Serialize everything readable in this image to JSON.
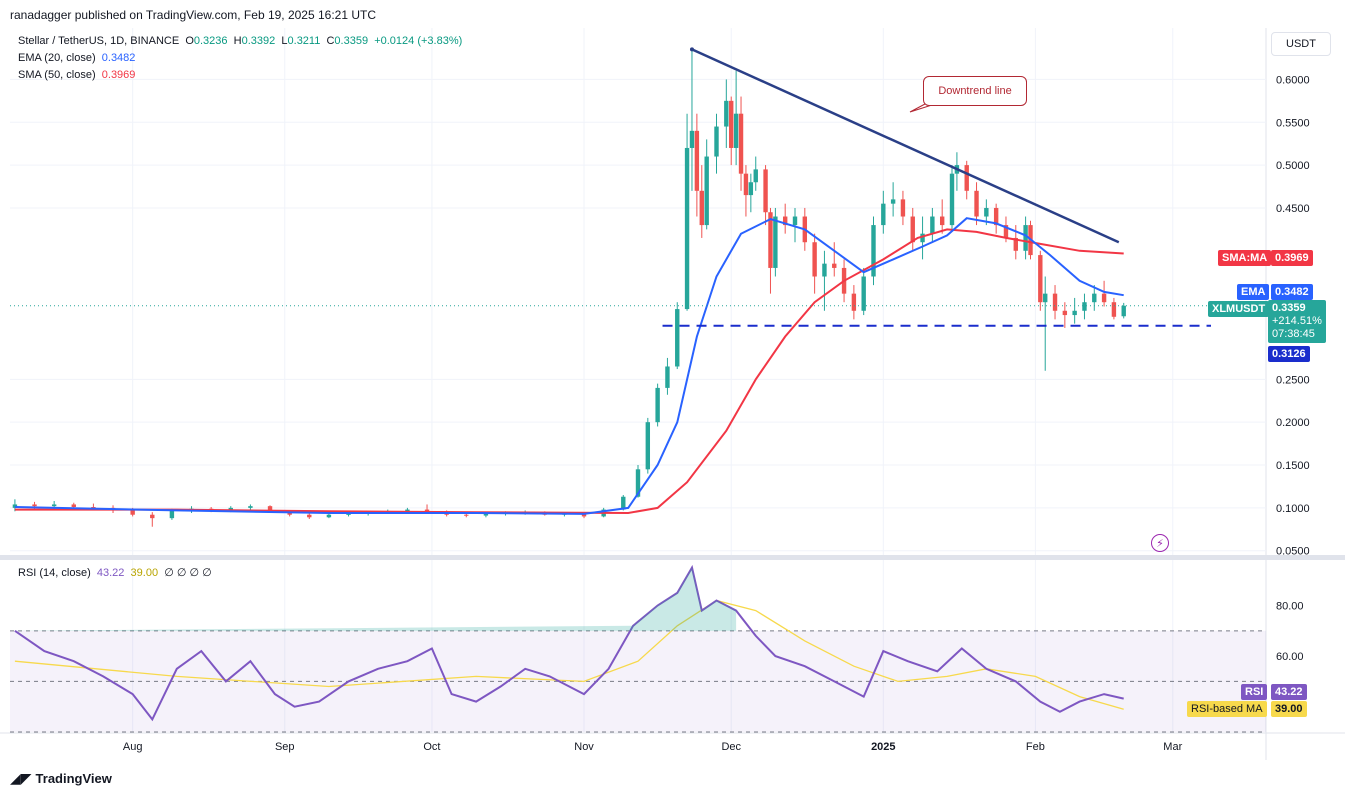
{
  "header": {
    "published_line": "ranadagger published on TradingView.com, Feb 19, 2025 16:21 UTC"
  },
  "legend": {
    "symbol": "Stellar / TetherUS, 1D, BINANCE",
    "open_label": "O",
    "open": "0.3236",
    "high_label": "H",
    "high": "0.3392",
    "low_label": "L",
    "low": "0.3211",
    "close_label": "C",
    "close": "0.3359",
    "change": "+0.0124 (+3.83%)",
    "ema_label": "EMA (20, close)",
    "ema_value": "0.3482",
    "sma_label": "SMA (50, close)",
    "sma_value": "0.3969",
    "rsi_label": "RSI (14, close)",
    "rsi_value": "43.22",
    "rsi_ma_value": "39.00",
    "rsi_extra": "∅ ∅ ∅ ∅"
  },
  "currency": "USDT",
  "annotation": "Downtrend line",
  "price_tags": {
    "sma_name": "SMA:MA",
    "sma_value": "0.3969",
    "ema_name": "EMA",
    "ema_value": "0.3482",
    "symbol_name": "XLMUSDT",
    "last_price": "0.3359",
    "change_pct": "+214.51%",
    "countdown": "07:38:45",
    "support_value": "0.3126",
    "rsi_name": "RSI",
    "rsi_value": "43.22",
    "rsi_ma_name": "RSI-based MA",
    "rsi_ma_value": "39.00"
  },
  "branding": "TradingView",
  "colors": {
    "up": "#26a69a",
    "down": "#ef5350",
    "ema": "#2962ff",
    "sma": "#f23645",
    "trendline": "#2a3f87",
    "support": "#1a2dcc",
    "rsi": "#7e57c2",
    "rsi_ma": "#f7d94c"
  },
  "chart_data": [
    {
      "type": "candlestick",
      "title": "Stellar / TetherUS, 1D, BINANCE",
      "y_ticks": [
        "0.6000",
        "0.5500",
        "0.5000",
        "0.4500",
        "0.2500",
        "0.2000",
        "0.1500",
        "0.1000",
        "0.0500"
      ],
      "x_ticks": [
        "Aug",
        "Sep",
        "Oct",
        "Nov",
        "Dec",
        "2025",
        "Feb",
        "Mar"
      ],
      "ylim": [
        0.045,
        0.66
      ],
      "x_range": [
        "2024-07-07",
        "2025-03-20"
      ],
      "support_level": 0.3126,
      "trendline": [
        [
          "2024-11-23",
          0.635
        ],
        [
          "2025-02-18",
          0.41
        ]
      ],
      "ohlc": [
        [
          "2024-07-08",
          0.1,
          0.11,
          0.096,
          0.104
        ],
        [
          "2024-07-12",
          0.104,
          0.107,
          0.098,
          0.102
        ],
        [
          "2024-07-16",
          0.102,
          0.108,
          0.097,
          0.104
        ],
        [
          "2024-07-20",
          0.104,
          0.106,
          0.099,
          0.101
        ],
        [
          "2024-07-24",
          0.101,
          0.105,
          0.097,
          0.1
        ],
        [
          "2024-07-28",
          0.1,
          0.103,
          0.094,
          0.097
        ],
        [
          "2024-08-01",
          0.097,
          0.1,
          0.09,
          0.092
        ],
        [
          "2024-08-05",
          0.092,
          0.095,
          0.078,
          0.088
        ],
        [
          "2024-08-09",
          0.088,
          0.099,
          0.086,
          0.097
        ],
        [
          "2024-08-13",
          0.097,
          0.102,
          0.094,
          0.099
        ],
        [
          "2024-08-17",
          0.099,
          0.101,
          0.095,
          0.097
        ],
        [
          "2024-08-21",
          0.097,
          0.102,
          0.095,
          0.1
        ],
        [
          "2024-08-25",
          0.1,
          0.104,
          0.097,
          0.102
        ],
        [
          "2024-08-29",
          0.102,
          0.103,
          0.094,
          0.095
        ],
        [
          "2024-09-02",
          0.095,
          0.097,
          0.09,
          0.092
        ],
        [
          "2024-09-06",
          0.092,
          0.094,
          0.087,
          0.089
        ],
        [
          "2024-09-10",
          0.089,
          0.093,
          0.088,
          0.092
        ],
        [
          "2024-09-14",
          0.092,
          0.095,
          0.09,
          0.093
        ],
        [
          "2024-09-18",
          0.093,
          0.096,
          0.091,
          0.095
        ],
        [
          "2024-09-22",
          0.095,
          0.098,
          0.093,
          0.096
        ],
        [
          "2024-09-26",
          0.096,
          0.1,
          0.094,
          0.098
        ],
        [
          "2024-09-30",
          0.098,
          0.104,
          0.093,
          0.095
        ],
        [
          "2024-10-04",
          0.095,
          0.097,
          0.09,
          0.092
        ],
        [
          "2024-10-08",
          0.092,
          0.094,
          0.089,
          0.091
        ],
        [
          "2024-10-12",
          0.091,
          0.094,
          0.089,
          0.093
        ],
        [
          "2024-10-16",
          0.093,
          0.096,
          0.091,
          0.094
        ],
        [
          "2024-10-20",
          0.094,
          0.097,
          0.092,
          0.095
        ],
        [
          "2024-10-24",
          0.095,
          0.096,
          0.091,
          0.092
        ],
        [
          "2024-10-28",
          0.092,
          0.095,
          0.09,
          0.094
        ],
        [
          "2024-11-01",
          0.094,
          0.095,
          0.088,
          0.09
        ],
        [
          "2024-11-05",
          0.09,
          0.1,
          0.089,
          0.098
        ],
        [
          "2024-11-09",
          0.098,
          0.115,
          0.097,
          0.113
        ],
        [
          "2024-11-12",
          0.113,
          0.15,
          0.112,
          0.145
        ],
        [
          "2024-11-14",
          0.145,
          0.205,
          0.14,
          0.2
        ],
        [
          "2024-11-16",
          0.2,
          0.245,
          0.195,
          0.24
        ],
        [
          "2024-11-18",
          0.24,
          0.275,
          0.232,
          0.265
        ],
        [
          "2024-11-20",
          0.265,
          0.34,
          0.262,
          0.332
        ],
        [
          "2024-11-22",
          0.332,
          0.56,
          0.33,
          0.52
        ],
        [
          "2024-11-23",
          0.52,
          0.635,
          0.47,
          0.54
        ],
        [
          "2024-11-24",
          0.54,
          0.56,
          0.44,
          0.47
        ],
        [
          "2024-11-25",
          0.47,
          0.5,
          0.415,
          0.43
        ],
        [
          "2024-11-26",
          0.43,
          0.53,
          0.425,
          0.51
        ],
        [
          "2024-11-28",
          0.51,
          0.56,
          0.49,
          0.545
        ],
        [
          "2024-11-30",
          0.545,
          0.6,
          0.52,
          0.575
        ],
        [
          "2024-12-01",
          0.575,
          0.58,
          0.5,
          0.52
        ],
        [
          "2024-12-02",
          0.52,
          0.61,
          0.5,
          0.56
        ],
        [
          "2024-12-03",
          0.56,
          0.58,
          0.47,
          0.49
        ],
        [
          "2024-12-04",
          0.49,
          0.5,
          0.44,
          0.465
        ],
        [
          "2024-12-05",
          0.465,
          0.49,
          0.445,
          0.48
        ],
        [
          "2024-12-06",
          0.48,
          0.51,
          0.47,
          0.495
        ],
        [
          "2024-12-08",
          0.495,
          0.5,
          0.43,
          0.445
        ],
        [
          "2024-12-09",
          0.445,
          0.45,
          0.35,
          0.38
        ],
        [
          "2024-12-10",
          0.38,
          0.45,
          0.37,
          0.44
        ],
        [
          "2024-12-12",
          0.44,
          0.455,
          0.42,
          0.43
        ],
        [
          "2024-12-14",
          0.43,
          0.45,
          0.41,
          0.44
        ],
        [
          "2024-12-16",
          0.44,
          0.45,
          0.4,
          0.41
        ],
        [
          "2024-12-18",
          0.41,
          0.42,
          0.35,
          0.37
        ],
        [
          "2024-12-20",
          0.37,
          0.4,
          0.33,
          0.385
        ],
        [
          "2024-12-22",
          0.385,
          0.41,
          0.37,
          0.38
        ],
        [
          "2024-12-24",
          0.38,
          0.39,
          0.34,
          0.35
        ],
        [
          "2024-12-26",
          0.35,
          0.36,
          0.32,
          0.33
        ],
        [
          "2024-12-28",
          0.33,
          0.38,
          0.325,
          0.37
        ],
        [
          "2024-12-30",
          0.37,
          0.44,
          0.36,
          0.43
        ],
        [
          "2025-01-01",
          0.43,
          0.47,
          0.42,
          0.455
        ],
        [
          "2025-01-03",
          0.455,
          0.48,
          0.44,
          0.46
        ],
        [
          "2025-01-05",
          0.46,
          0.47,
          0.43,
          0.44
        ],
        [
          "2025-01-07",
          0.44,
          0.45,
          0.4,
          0.41
        ],
        [
          "2025-01-09",
          0.41,
          0.44,
          0.39,
          0.42
        ],
        [
          "2025-01-11",
          0.42,
          0.45,
          0.41,
          0.44
        ],
        [
          "2025-01-13",
          0.44,
          0.46,
          0.42,
          0.43
        ],
        [
          "2025-01-15",
          0.43,
          0.5,
          0.425,
          0.49
        ],
        [
          "2025-01-16",
          0.49,
          0.515,
          0.47,
          0.5
        ],
        [
          "2025-01-18",
          0.5,
          0.505,
          0.46,
          0.47
        ],
        [
          "2025-01-20",
          0.47,
          0.48,
          0.43,
          0.44
        ],
        [
          "2025-01-22",
          0.44,
          0.46,
          0.43,
          0.45
        ],
        [
          "2025-01-24",
          0.45,
          0.455,
          0.42,
          0.43
        ],
        [
          "2025-01-26",
          0.43,
          0.44,
          0.41,
          0.415
        ],
        [
          "2025-01-28",
          0.415,
          0.43,
          0.39,
          0.4
        ],
        [
          "2025-01-30",
          0.4,
          0.44,
          0.39,
          0.43
        ],
        [
          "2025-01-31",
          0.43,
          0.435,
          0.39,
          0.395
        ],
        [
          "2025-02-02",
          0.395,
          0.4,
          0.33,
          0.34
        ],
        [
          "2025-02-03",
          0.34,
          0.37,
          0.26,
          0.35
        ],
        [
          "2025-02-05",
          0.35,
          0.36,
          0.32,
          0.33
        ],
        [
          "2025-02-07",
          0.33,
          0.34,
          0.31,
          0.325
        ],
        [
          "2025-02-09",
          0.325,
          0.345,
          0.315,
          0.33
        ],
        [
          "2025-02-11",
          0.33,
          0.35,
          0.32,
          0.34
        ],
        [
          "2025-02-13",
          0.34,
          0.36,
          0.33,
          0.35
        ],
        [
          "2025-02-15",
          0.35,
          0.365,
          0.335,
          0.34
        ],
        [
          "2025-02-17",
          0.34,
          0.345,
          0.32,
          0.323
        ],
        [
          "2025-02-19",
          0.3236,
          0.3392,
          0.3211,
          0.3359
        ]
      ],
      "ema20": [
        [
          "2024-07-08",
          0.101
        ],
        [
          "2024-08-10",
          0.097
        ],
        [
          "2024-09-10",
          0.094
        ],
        [
          "2024-10-10",
          0.094
        ],
        [
          "2024-11-01",
          0.093
        ],
        [
          "2024-11-10",
          0.1
        ],
        [
          "2024-11-16",
          0.15
        ],
        [
          "2024-11-20",
          0.2
        ],
        [
          "2024-11-24",
          0.3
        ],
        [
          "2024-11-28",
          0.37
        ],
        [
          "2024-12-03",
          0.42
        ],
        [
          "2024-12-09",
          0.437
        ],
        [
          "2024-12-16",
          0.425
        ],
        [
          "2024-12-22",
          0.4
        ],
        [
          "2024-12-28",
          0.375
        ],
        [
          "2025-01-03",
          0.39
        ],
        [
          "2025-01-09",
          0.405
        ],
        [
          "2025-01-14",
          0.418
        ],
        [
          "2025-01-18",
          0.438
        ],
        [
          "2025-01-24",
          0.432
        ],
        [
          "2025-01-30",
          0.418
        ],
        [
          "2025-02-04",
          0.395
        ],
        [
          "2025-02-10",
          0.365
        ],
        [
          "2025-02-15",
          0.352
        ],
        [
          "2025-02-19",
          0.3482
        ]
      ],
      "sma50": [
        [
          "2024-07-08",
          0.098
        ],
        [
          "2024-08-10",
          0.098
        ],
        [
          "2024-09-10",
          0.096
        ],
        [
          "2024-10-10",
          0.095
        ],
        [
          "2024-11-10",
          0.094
        ],
        [
          "2024-11-16",
          0.1
        ],
        [
          "2024-11-22",
          0.13
        ],
        [
          "2024-11-30",
          0.19
        ],
        [
          "2024-12-06",
          0.25
        ],
        [
          "2024-12-12",
          0.3
        ],
        [
          "2024-12-18",
          0.34
        ],
        [
          "2024-12-24",
          0.365
        ],
        [
          "2025-01-01",
          0.39
        ],
        [
          "2025-01-08",
          0.415
        ],
        [
          "2025-01-14",
          0.425
        ],
        [
          "2025-01-20",
          0.422
        ],
        [
          "2025-01-26",
          0.415
        ],
        [
          "2025-02-02",
          0.408
        ],
        [
          "2025-02-10",
          0.4
        ],
        [
          "2025-02-19",
          0.3969
        ]
      ]
    },
    {
      "type": "line",
      "title": "RSI (14, close)",
      "y_ticks": [
        "80.00",
        "60.00"
      ],
      "ylim": [
        30,
        98
      ],
      "band": [
        30,
        70
      ],
      "midline": 50,
      "series": [
        {
          "name": "RSI",
          "values": [
            [
              "2024-07-08",
              70
            ],
            [
              "2024-07-14",
              62
            ],
            [
              "2024-07-20",
              58
            ],
            [
              "2024-07-26",
              52
            ],
            [
              "2024-08-01",
              45
            ],
            [
              "2024-08-05",
              35
            ],
            [
              "2024-08-10",
              55
            ],
            [
              "2024-08-15",
              62
            ],
            [
              "2024-08-20",
              50
            ],
            [
              "2024-08-25",
              58
            ],
            [
              "2024-08-30",
              45
            ],
            [
              "2024-09-03",
              40
            ],
            [
              "2024-09-08",
              42
            ],
            [
              "2024-09-14",
              50
            ],
            [
              "2024-09-20",
              55
            ],
            [
              "2024-09-26",
              58
            ],
            [
              "2024-10-01",
              63
            ],
            [
              "2024-10-05",
              45
            ],
            [
              "2024-10-10",
              42
            ],
            [
              "2024-10-15",
              48
            ],
            [
              "2024-10-20",
              55
            ],
            [
              "2024-10-25",
              52
            ],
            [
              "2024-11-01",
              45
            ],
            [
              "2024-11-06",
              55
            ],
            [
              "2024-11-11",
              72
            ],
            [
              "2024-11-16",
              80
            ],
            [
              "2024-11-20",
              85
            ],
            [
              "2024-11-23",
              95
            ],
            [
              "2024-11-25",
              78
            ],
            [
              "2024-11-28",
              82
            ],
            [
              "2024-12-02",
              78
            ],
            [
              "2024-12-06",
              68
            ],
            [
              "2024-12-10",
              60
            ],
            [
              "2024-12-16",
              56
            ],
            [
              "2024-12-22",
              50
            ],
            [
              "2024-12-28",
              44
            ],
            [
              "2025-01-01",
              62
            ],
            [
              "2025-01-06",
              58
            ],
            [
              "2025-01-12",
              54
            ],
            [
              "2025-01-17",
              63
            ],
            [
              "2025-01-22",
              55
            ],
            [
              "2025-01-28",
              50
            ],
            [
              "2025-02-02",
              42
            ],
            [
              "2025-02-06",
              38
            ],
            [
              "2025-02-10",
              42
            ],
            [
              "2025-02-15",
              45
            ],
            [
              "2025-02-19",
              43.22
            ]
          ]
        },
        {
          "name": "RSI-based MA",
          "values": [
            [
              "2024-07-08",
              58
            ],
            [
              "2024-08-10",
              52
            ],
            [
              "2024-09-10",
              48
            ],
            [
              "2024-10-10",
              52
            ],
            [
              "2024-11-01",
              50
            ],
            [
              "2024-11-12",
              58
            ],
            [
              "2024-11-20",
              72
            ],
            [
              "2024-11-28",
              82
            ],
            [
              "2024-12-06",
              78
            ],
            [
              "2024-12-16",
              66
            ],
            [
              "2024-12-26",
              56
            ],
            [
              "2025-01-04",
              50
            ],
            [
              "2025-01-14",
              52
            ],
            [
              "2025-01-22",
              55
            ],
            [
              "2025-02-01",
              52
            ],
            [
              "2025-02-10",
              44
            ],
            [
              "2025-02-19",
              39.0
            ]
          ]
        }
      ]
    }
  ]
}
